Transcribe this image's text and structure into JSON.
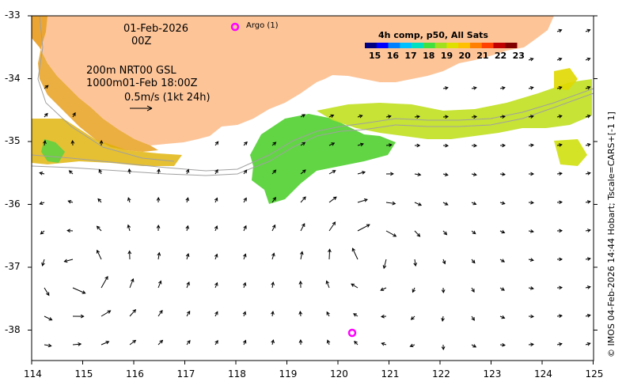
{
  "map": {
    "date": "01-Feb-2026",
    "time": "00Z",
    "depth_info": "200m  NRT00 GSL",
    "depth_info2": "1000m01-Feb 18:00Z",
    "scale_label": "0.5m/s (1kt 24h)",
    "argo_label": "Argo (1)",
    "credit": "© IMOS 04-Feb-2026 14:44 Hobart; Tscale=CARS+[-1 1]",
    "colorbar": {
      "title": "4h comp, p50, All Sats",
      "ticks": [
        "15",
        "16",
        "17",
        "18",
        "19",
        "20",
        "21",
        "22",
        "23"
      ],
      "colors": [
        "#000080",
        "#0000ff",
        "#0080ff",
        "#00c0ff",
        "#00e0c0",
        "#40e040",
        "#a0e020",
        "#e0e000",
        "#ffc000",
        "#ff8000",
        "#ff4000",
        "#c00000",
        "#800000"
      ]
    },
    "x_ticks": [
      "114",
      "115",
      "116",
      "117",
      "118",
      "119",
      "120",
      "121",
      "122",
      "123",
      "124",
      "125"
    ],
    "y_ticks": [
      "-33",
      "-34",
      "-35",
      "-36",
      "-37",
      "-38"
    ],
    "colors": {
      "land": "#fdc498",
      "argo": "#ff00ff"
    }
  }
}
